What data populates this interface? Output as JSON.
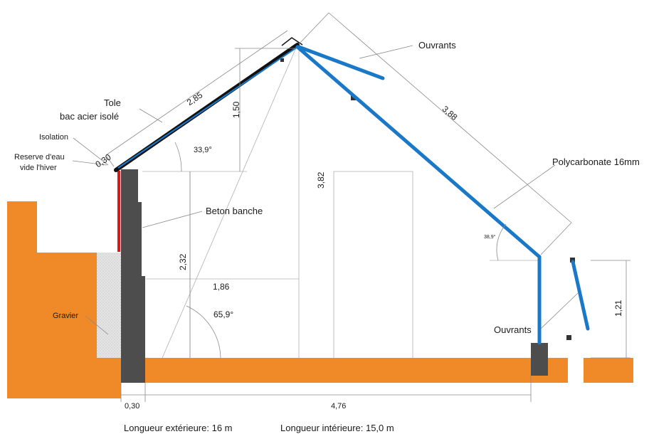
{
  "labels": {
    "tole": "Tole",
    "bac_acier": "bac acier isolé",
    "isolation": "Isolation",
    "reserve_eau": "Reserve d'eau",
    "vide_hiver": "vide l'hiver",
    "beton_banche": "Beton banche",
    "gravier": "Gravier",
    "ouvrants_top": "Ouvrants",
    "ouvrants_bottom": "Ouvrants",
    "polycarbonate": "Polycarbonate 16mm"
  },
  "dimensions": {
    "roof_left_length": "2,85",
    "roof_right_length": "3,88",
    "insulation_thickness": "0,30",
    "ridge_rise": "1,50",
    "left_wall_height": "2,32",
    "total_height": "3,82",
    "right_wall_height": "1,21",
    "half_span": "1,86",
    "wall_base": "0,30",
    "interior_span": "4,76"
  },
  "angles": {
    "left_roof": "33,9°",
    "right_roof": "38,9°",
    "diagonal": "65,9°"
  },
  "footer": {
    "exterior_length": "Longueur extérieure: 16  m",
    "interior_length": "Longueur intérieure: 15,0 m"
  },
  "colors": {
    "ground": "#f08a28",
    "concrete": "#4d4d4d",
    "polycarbonate": "#1a78c8",
    "roof_steel": "#111111",
    "insulation_red": "#d8191c",
    "gravel": "#dcdcdc"
  }
}
